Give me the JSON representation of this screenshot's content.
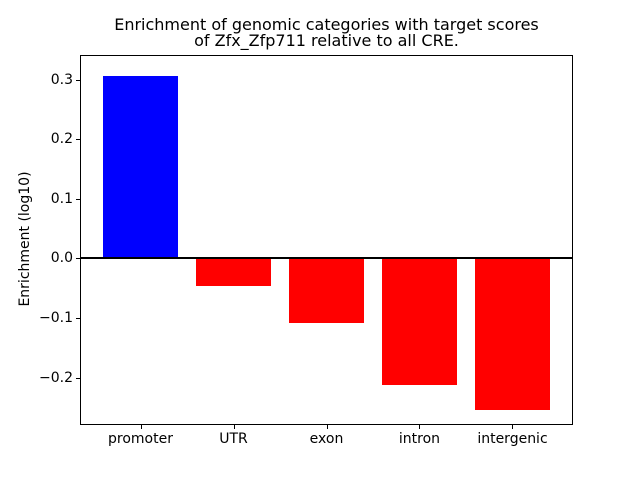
{
  "chart_data": {
    "type": "bar",
    "title": "Enrichment of genomic categories with target scores\nof Zfx_Zfp711 relative to all CRE.",
    "xlabel": "",
    "ylabel": "Enrichment (log10)",
    "categories": [
      "promoter",
      "UTR",
      "exon",
      "intron",
      "intergenic"
    ],
    "values": [
      0.307,
      -0.046,
      -0.108,
      -0.212,
      -0.254
    ],
    "bar_colors": [
      "#0000ff",
      "#ff0000",
      "#ff0000",
      "#ff0000",
      "#ff0000"
    ],
    "bar_width": 0.8,
    "yticks": [
      0.3,
      0.2,
      0.1,
      0.0,
      -0.1,
      -0.2
    ],
    "ylim": [
      -0.278,
      0.34
    ],
    "xlim": [
      -0.64,
      4.64
    ],
    "zero_line": {
      "y": 0,
      "color": "#000000",
      "linewidth": 2
    },
    "grid": false,
    "legend": null,
    "colors": {
      "background": "#ffffff",
      "axis": "#000000",
      "text": "#000000",
      "positive_bar": "#0000ff",
      "negative_bar": "#ff0000"
    }
  }
}
